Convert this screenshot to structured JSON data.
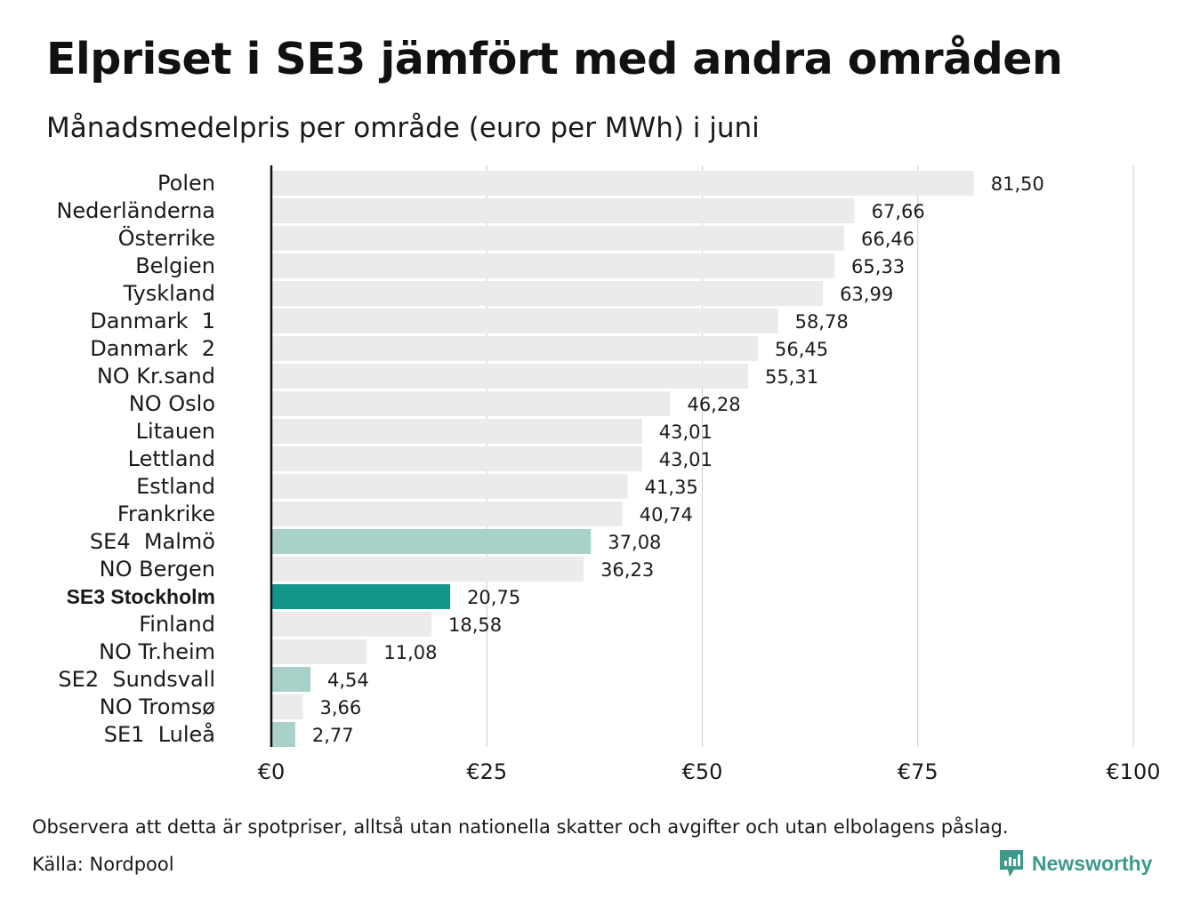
{
  "title": "Elpriset i SE3 jämfört med andra områden",
  "subtitle": "Månadsmedelpris per område (euro per MWh) i juni",
  "footnote": "Observera att detta är spotpriser, alltså utan nationella skatter och avgifter och utan elbolagens påslag.",
  "source": "Källa: Nordpool",
  "brand": {
    "name": "Newsworthy",
    "icon": "newsworthy-logo-icon",
    "color": "#3d9a8b"
  },
  "colors": {
    "default": "#ebebeb",
    "highlight": "#13958a",
    "swedish": "#a8d1c9",
    "grid": "#cccccc",
    "axis": "#111111"
  },
  "chart_data": {
    "type": "bar",
    "orientation": "horizontal",
    "title": "Elpriset i SE3 jämfört med andra områden",
    "subtitle": "Månadsmedelpris per område (euro per MWh) i juni",
    "xlim": [
      0,
      100
    ],
    "xticks": [
      0,
      25,
      50,
      75,
      100
    ],
    "xtick_labels": [
      "€0",
      "€25",
      "€50",
      "€75",
      "€100"
    ],
    "grid": "vertical",
    "categories": [
      "Polen",
      "Nederländerna",
      "Österrike",
      "Belgien",
      "Tyskland",
      "Danmark  1",
      "Danmark  2",
      "NO Kr.sand",
      "NO Oslo",
      "Litauen",
      "Lettland",
      "Estland",
      "Frankrike",
      "SE4  Malmö",
      "NO Bergen",
      "SE3 Stockholm",
      "Finland",
      "NO Tr.heim",
      "SE2  Sundsvall",
      "NO Tromsø",
      "SE1  Luleå"
    ],
    "values": [
      81.5,
      67.66,
      66.46,
      65.33,
      63.99,
      58.78,
      56.45,
      55.31,
      46.28,
      43.01,
      43.01,
      41.35,
      40.74,
      37.08,
      36.23,
      20.75,
      18.58,
      11.08,
      4.54,
      3.66,
      2.77
    ],
    "value_labels": [
      "81,50",
      "67,66",
      "66,46",
      "65,33",
      "63,99",
      "58,78",
      "56,45",
      "55,31",
      "46,28",
      "43,01",
      "43,01",
      "41,35",
      "40,74",
      "37,08",
      "36,23",
      "20,75",
      "18,58",
      "11,08",
      "4,54",
      "3,66",
      "2,77"
    ],
    "bar_style": [
      "default",
      "default",
      "default",
      "default",
      "default",
      "default",
      "default",
      "default",
      "default",
      "default",
      "default",
      "default",
      "default",
      "swedish",
      "default",
      "highlight",
      "default",
      "default",
      "swedish",
      "default",
      "swedish"
    ],
    "bold_category": "SE3 Stockholm"
  }
}
